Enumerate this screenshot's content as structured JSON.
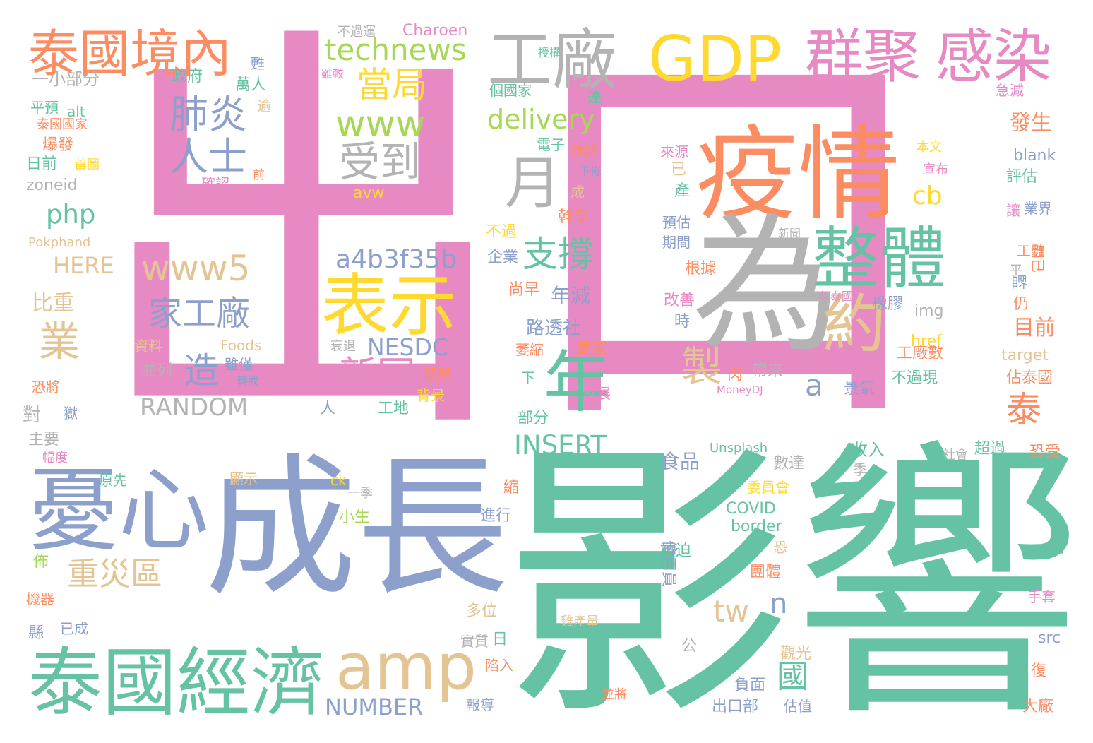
{
  "palette": {
    "pink": "#e78ac3",
    "green": "#66c2a5",
    "orange": "#fc8d62",
    "blue": "#8da0cb",
    "lime": "#a6d854",
    "yellow": "#ffd92f",
    "tan": "#e5c494",
    "gray": "#b3b3b3"
  },
  "words": [
    {
      "text": "出口",
      "color": "pink"
    },
    {
      "text": "影響",
      "color": "green"
    },
    {
      "text": "疫情",
      "color": "orange"
    },
    {
      "text": "為",
      "color": "gray"
    },
    {
      "text": "成長",
      "color": "blue"
    },
    {
      "text": "泰國經濟",
      "color": "green"
    },
    {
      "text": "憂心",
      "color": "blue"
    },
    {
      "text": "amp",
      "color": "tan"
    },
    {
      "text": "GDP",
      "color": "yellow"
    },
    {
      "text": "群聚",
      "color": "pink"
    },
    {
      "text": "感染",
      "color": "pink"
    },
    {
      "text": "工廠",
      "color": "gray"
    },
    {
      "text": "泰國境內",
      "color": "orange"
    },
    {
      "text": "整體",
      "color": "green"
    },
    {
      "text": "表示",
      "color": "yellow"
    },
    {
      "text": "年",
      "color": "green"
    },
    {
      "text": "約",
      "color": "tan"
    },
    {
      "text": "月",
      "color": "gray"
    },
    {
      "text": "technews",
      "color": "lime"
    },
    {
      "text": "肺炎",
      "color": "blue"
    },
    {
      "text": "人士",
      "color": "blue"
    },
    {
      "text": "當局",
      "color": "yellow"
    },
    {
      "text": "www",
      "color": "lime"
    },
    {
      "text": "delivery",
      "color": "lime"
    },
    {
      "text": "受到",
      "color": "gray"
    },
    {
      "text": "www5",
      "color": "tan"
    },
    {
      "text": "支撐",
      "color": "green"
    },
    {
      "text": "a4b3f35b",
      "color": "blue"
    },
    {
      "text": "家工廠",
      "color": "blue"
    },
    {
      "text": "重災區",
      "color": "tan"
    },
    {
      "text": "新冠",
      "color": "pink"
    },
    {
      "text": "製",
      "color": "tan"
    },
    {
      "text": "泰",
      "color": "orange"
    },
    {
      "text": "造",
      "color": "blue"
    },
    {
      "text": "業",
      "color": "tan"
    },
    {
      "text": "php",
      "color": "green"
    },
    {
      "text": "國",
      "color": "green"
    },
    {
      "text": "tw",
      "color": "tan"
    },
    {
      "text": "INSERT",
      "color": "green"
    },
    {
      "text": "NESDC",
      "color": "blue"
    },
    {
      "text": "RANDOM",
      "color": "gray"
    },
    {
      "text": "NUMBER",
      "color": "blue"
    },
    {
      "text": "路透社",
      "color": "blue"
    },
    {
      "text": "年減",
      "color": "blue"
    },
    {
      "text": "cb",
      "color": "yellow"
    },
    {
      "text": "a",
      "color": "blue"
    },
    {
      "text": "n",
      "color": "blue"
    },
    {
      "text": "HERE",
      "color": "tan"
    },
    {
      "text": "比重",
      "color": "tan"
    },
    {
      "text": "目前",
      "color": "orange"
    },
    {
      "text": "發生",
      "color": "orange"
    },
    {
      "text": "Charoen",
      "color": "pink"
    },
    {
      "text": "食品",
      "color": "blue"
    },
    {
      "text": "佔泰國",
      "color": "orange"
    },
    {
      "text": "blank",
      "color": "blue"
    },
    {
      "text": "評估",
      "color": "green"
    },
    {
      "text": "業界",
      "color": "blue"
    },
    {
      "text": "讓",
      "color": "pink"
    },
    {
      "text": "急減",
      "color": "pink"
    },
    {
      "text": "收入",
      "color": "green"
    },
    {
      "text": "COVID",
      "color": "green"
    },
    {
      "text": "border",
      "color": "green"
    },
    {
      "text": "出口部",
      "color": "blue"
    },
    {
      "text": "負面",
      "color": "blue"
    },
    {
      "text": "報導",
      "color": "blue"
    },
    {
      "text": "大廠",
      "color": "orange"
    },
    {
      "text": "手套",
      "color": "pink"
    },
    {
      "text": "恐受",
      "color": "orange"
    },
    {
      "text": "超過",
      "color": "green"
    },
    {
      "text": "數達",
      "color": "gray"
    },
    {
      "text": "工廠數",
      "color": "orange"
    },
    {
      "text": "不過現",
      "color": "green"
    },
    {
      "text": "景氣",
      "color": "blue"
    },
    {
      "text": "帶來",
      "color": "gray"
    },
    {
      "text": "橡膠",
      "color": "blue"
    },
    {
      "text": "img",
      "color": "gray"
    },
    {
      "text": "href",
      "color": "yellow"
    },
    {
      "text": "target",
      "color": "tan"
    },
    {
      "text": "Foods",
      "color": "tan"
    },
    {
      "text": "資料",
      "color": "tan"
    },
    {
      "text": "並列",
      "color": "gray"
    },
    {
      "text": "雖僅",
      "color": "blue"
    },
    {
      "text": "轉載",
      "color": "blue"
    },
    {
      "text": "衰退",
      "color": "gray"
    },
    {
      "text": "關閉",
      "color": "orange"
    },
    {
      "text": "背景",
      "color": "yellow"
    },
    {
      "text": "工地",
      "color": "green"
    },
    {
      "text": "人",
      "color": "blue"
    },
    {
      "text": "對",
      "color": "gray"
    },
    {
      "text": "主要",
      "color": "gray"
    },
    {
      "text": "恐將",
      "color": "orange"
    },
    {
      "text": "獄",
      "color": "blue"
    },
    {
      "text": "幅度",
      "color": "pink"
    },
    {
      "text": "原先",
      "color": "green"
    },
    {
      "text": "顯示",
      "color": "tan"
    },
    {
      "text": "ck",
      "color": "yellow"
    },
    {
      "text": "一季",
      "color": "gray"
    },
    {
      "text": "小生",
      "color": "lime"
    },
    {
      "text": "進行",
      "color": "blue"
    },
    {
      "text": "縮",
      "color": "orange"
    },
    {
      "text": "多位",
      "color": "tan"
    },
    {
      "text": "日",
      "color": "green"
    },
    {
      "text": "實質",
      "color": "gray"
    },
    {
      "text": "陷入",
      "color": "orange"
    },
    {
      "text": "雞產量",
      "color": "tan"
    },
    {
      "text": "並將",
      "color": "orange"
    },
    {
      "text": "公",
      "color": "gray"
    },
    {
      "text": "觀光",
      "color": "tan"
    },
    {
      "text": "被迫",
      "color": "green"
    },
    {
      "text": "僱用員",
      "color": "blue"
    },
    {
      "text": "團體",
      "color": "orange"
    },
    {
      "text": "恐",
      "color": "tan"
    },
    {
      "text": "委員會",
      "color": "yellow"
    },
    {
      "text": "估值",
      "color": "blue"
    },
    {
      "text": "復",
      "color": "orange"
    },
    {
      "text": "src",
      "color": "blue"
    },
    {
      "text": "佔",
      "color": "green"
    },
    {
      "text": "季",
      "color": "gray"
    },
    {
      "text": "社會",
      "color": "gray"
    },
    {
      "text": "Unsplash",
      "color": "green"
    },
    {
      "text": "MoneyDJ",
      "color": "pink"
    },
    {
      "text": "肉",
      "color": "orange"
    },
    {
      "text": "時",
      "color": "blue"
    },
    {
      "text": "改善",
      "color": "pink"
    },
    {
      "text": "根據",
      "color": "orange"
    },
    {
      "text": "期間",
      "color": "blue"
    },
    {
      "text": "預估",
      "color": "blue"
    },
    {
      "text": "產",
      "color": "green"
    },
    {
      "text": "已",
      "color": "tan"
    },
    {
      "text": "來源",
      "color": "pink"
    },
    {
      "text": "年泰國",
      "color": "pink"
    },
    {
      "text": "新聞",
      "color": "gray"
    },
    {
      "text": "本文",
      "color": "yellow"
    },
    {
      "text": "宣布",
      "color": "pink"
    },
    {
      "text": "工數",
      "color": "orange"
    },
    {
      "text": "門已",
      "color": "orange"
    },
    {
      "text": "平",
      "color": "gray"
    },
    {
      "text": "監",
      "color": "blue"
    },
    {
      "text": "仍",
      "color": "orange"
    },
    {
      "text": "一小部分",
      "color": "gray"
    },
    {
      "text": "平預",
      "color": "green"
    },
    {
      "text": "alt",
      "color": "green"
    },
    {
      "text": "泰國國家",
      "color": "orange"
    },
    {
      "text": "爆發",
      "color": "orange"
    },
    {
      "text": "日前",
      "color": "green"
    },
    {
      "text": "首圖",
      "color": "yellow"
    },
    {
      "text": "zoneid",
      "color": "gray"
    },
    {
      "text": "確認",
      "color": "pink"
    },
    {
      "text": "前",
      "color": "orange"
    },
    {
      "text": "Pokphand",
      "color": "tan"
    },
    {
      "text": "不過運",
      "color": "gray"
    },
    {
      "text": "授權",
      "color": "green"
    },
    {
      "text": "甦",
      "color": "blue"
    },
    {
      "text": "雖較",
      "color": "pink"
    },
    {
      "text": "政府",
      "color": "green"
    },
    {
      "text": "萬人",
      "color": "green"
    },
    {
      "text": "逾",
      "color": "tan"
    },
    {
      "text": "個國家",
      "color": "green"
    },
    {
      "text": "達",
      "color": "green"
    },
    {
      "text": "電子",
      "color": "green"
    },
    {
      "text": "確診",
      "color": "orange"
    },
    {
      "text": "下修",
      "color": "blue"
    },
    {
      "text": "成",
      "color": "tan"
    },
    {
      "text": "avw",
      "color": "yellow"
    },
    {
      "text": "幹部",
      "color": "orange"
    },
    {
      "text": "不過",
      "color": "yellow"
    },
    {
      "text": "企業",
      "color": "blue"
    },
    {
      "text": "尚早",
      "color": "orange"
    },
    {
      "text": "萎縮",
      "color": "orange"
    },
    {
      "text": "萬家",
      "color": "orange"
    },
    {
      "text": "下",
      "color": "green"
    },
    {
      "text": "部分",
      "color": "green"
    },
    {
      "text": "發展",
      "color": "pink"
    },
    {
      "text": "已成",
      "color": "blue"
    },
    {
      "text": "縣",
      "color": "blue"
    },
    {
      "text": "機器",
      "color": "orange"
    },
    {
      "text": "佈",
      "color": "lime"
    }
  ]
}
